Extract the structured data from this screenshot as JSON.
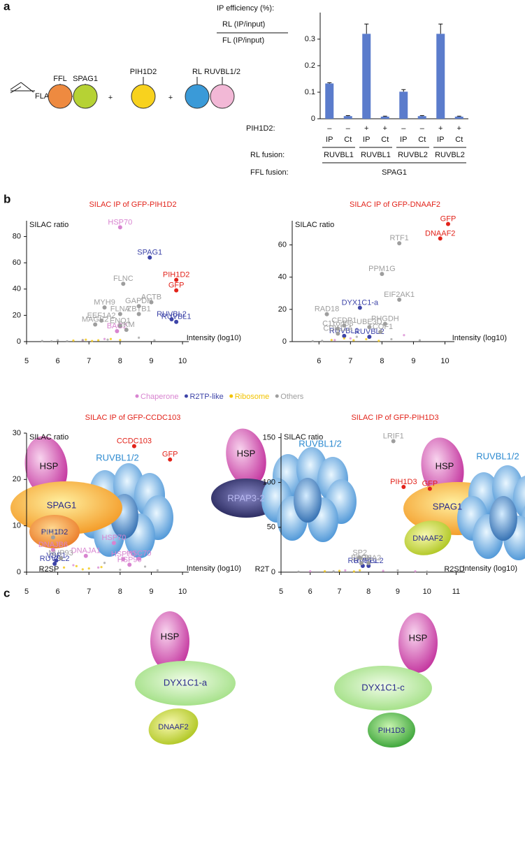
{
  "panel_labels": [
    "a",
    "b",
    "c"
  ],
  "diagram_a": {
    "flag": "FLAG",
    "labels": [
      "FFL",
      "SPAG1",
      "PIH1D2",
      "RL",
      "RUVBL1/2"
    ],
    "plus": [
      "+",
      "+"
    ]
  },
  "chart_data": [
    {
      "type": "bar",
      "y_label": [
        "IP efficiency (%):",
        "RL (IP/input)",
        "FL (IP/input)"
      ],
      "categories": [
        "IP",
        "Ct",
        "IP",
        "Ct",
        "IP",
        "Ct",
        "IP",
        "Ct"
      ],
      "values": [
        0.133,
        0.01,
        0.32,
        0.008,
        0.102,
        0.01,
        0.32,
        0.008
      ],
      "errors": [
        0.003,
        0.002,
        0.037,
        0.002,
        0.008,
        0.002,
        0.037,
        0.002
      ],
      "color": "#5b7ccc",
      "ylim": [
        0,
        0.4
      ],
      "yticks": [
        0,
        0.1,
        0.2,
        0.3
      ],
      "pih1d2_label": "PIH1D2:",
      "pih1d2": [
        "–",
        "–",
        "+",
        "+",
        "–",
        "–",
        "+",
        "+"
      ],
      "rl_label": "RL fusion:",
      "rl": [
        "RUVBL1",
        "RUVBL1",
        "RUVBL2",
        "RUVBL2"
      ],
      "ffl_label": "FFL fusion:",
      "ffl": "SPAG1"
    },
    {
      "type": "scatter",
      "title": "SILAC IP of GFP-PIH1D2",
      "y_label": "SILAC ratio",
      "x_label": "Intensity (log10)",
      "xlim": [
        5,
        10.2
      ],
      "xticks": [
        5,
        6,
        7,
        8,
        9,
        10
      ],
      "ylim": [
        0,
        92
      ],
      "yticks": [
        0,
        20,
        40,
        60,
        80
      ],
      "series": [
        {
          "name": "Chaperone",
          "color": "#d884d0",
          "x": [
            8.0,
            7.9,
            6.8,
            7.5
          ],
          "y": [
            87,
            8,
            1,
            2
          ],
          "labels": [
            "HSP70",
            "BAG2",
            null,
            null
          ]
        },
        {
          "name": "R2TP-like",
          "color": "#3d44a8",
          "x": [
            8.95,
            9.65,
            9.8
          ],
          "y": [
            64,
            17,
            15
          ],
          "labels": [
            "SPAG1",
            "RUVBL2",
            "RUVBL1"
          ]
        },
        {
          "name": "Ribosome",
          "color": "#f2c300",
          "x": [
            6.5,
            6.9,
            7.3,
            7.7,
            8.0,
            7.1
          ],
          "y": [
            0.8,
            1.5,
            1,
            2,
            1.2,
            0.5
          ],
          "labels": [
            null,
            null,
            null,
            null,
            null,
            null
          ]
        },
        {
          "name": "Others",
          "color": "#9e9e9e",
          "x": [
            8.1,
            7.5,
            8.6,
            9.0,
            8.0,
            8.6,
            7.4,
            8.0,
            7.2,
            8.2,
            5.5,
            6.0,
            6.3,
            6.8,
            7.6,
            8.6,
            9.1,
            5.8
          ],
          "y": [
            44,
            26,
            27,
            30,
            21,
            21,
            16,
            12,
            13,
            9,
            0.5,
            1,
            0.3,
            1.2,
            1.5,
            3,
            1,
            0.2
          ],
          "labels": [
            "FLNC",
            "MYH9",
            "GAPDH",
            "ACTB",
            "FLNA",
            "ZBTB1",
            "EEF1A2",
            "ENO1",
            "MAGE2",
            "PKM",
            null,
            null,
            null,
            null,
            null,
            null,
            null,
            null
          ]
        },
        {
          "color": "#e2231a",
          "x": [
            9.8,
            9.8
          ],
          "y": [
            47,
            39
          ],
          "labels": [
            "PIH1D2",
            "GFP"
          ]
        }
      ]
    },
    {
      "type": "scatter",
      "title": "SILAC IP of GFP-DNAAF2",
      "y_label": "SILAC ratio",
      "x_label": "Intensity (log10)",
      "xlim": [
        5.15,
        10.3
      ],
      "xticks": [
        6,
        7,
        8,
        9,
        10
      ],
      "ylim": [
        0,
        75
      ],
      "yticks": [
        0,
        20,
        40,
        60
      ],
      "series": [
        {
          "color": "#d884d0",
          "x": [
            7.0,
            8.7,
            6.5
          ],
          "y": [
            2,
            4,
            1
          ],
          "labels": [
            null,
            null,
            null
          ]
        },
        {
          "color": "#3d44a8",
          "x": [
            7.3,
            6.8,
            7.6
          ],
          "y": [
            21,
            3.5,
            3
          ],
          "labels": [
            "DYX1C1-a",
            "RUVBL1",
            "RUVBL2"
          ]
        },
        {
          "color": "#f2c300",
          "x": [
            6.4,
            6.8,
            7.1,
            7.5,
            7.9
          ],
          "y": [
            1,
            2,
            0.8,
            1.5,
            0.5
          ],
          "labels": [
            null,
            null,
            null,
            null,
            null
          ]
        },
        {
          "color": "#9e9e9e",
          "x": [
            8.55,
            8.0,
            8.55,
            6.25,
            6.8,
            8.1,
            7.6,
            6.6,
            7.95,
            6.6,
            6.1,
            7.2,
            8.3,
            9.2,
            5.8
          ],
          "y": [
            61,
            42,
            26,
            17,
            10,
            11,
            9,
            8,
            6,
            5,
            0.5,
            3,
            1.5,
            0.8,
            0.3
          ],
          "labels": [
            "RTF1",
            "PPM1G",
            "EIF2AK1",
            "RAD18",
            "CFDP1",
            "PHGDH",
            "UBE3D",
            "C11orf58",
            "TCOF1",
            "CDK11A",
            null,
            null,
            null,
            null,
            null
          ]
        },
        {
          "color": "#e2231a",
          "x": [
            10.1,
            9.85
          ],
          "y": [
            73,
            64
          ],
          "labels": [
            "GFP",
            "DNAAF2"
          ]
        }
      ]
    },
    {
      "type": "scatter",
      "title": "SILAC IP of GFP-CCDC103",
      "y_label": "SILAC ratio",
      "x_label": "Intensity (log10)",
      "xlim": [
        5,
        10.2
      ],
      "xticks": [
        5,
        6,
        7,
        8,
        9,
        10
      ],
      "ylim": [
        0,
        30
      ],
      "yticks": [
        0,
        10,
        20,
        30
      ],
      "series": [
        {
          "color": "#d884d0",
          "x": [
            5.85,
            6.9,
            7.8,
            8.1,
            8.6,
            8.3,
            7.3,
            6.5
          ],
          "y": [
            4.8,
            3.5,
            6.3,
            2.8,
            2.9,
            1.6,
            1,
            1.5
          ],
          "labels": [
            "DNAJB6",
            "DNAJA1",
            "HSP70",
            "HSP70",
            "HSC70",
            "HSP90",
            null,
            null
          ]
        },
        {
          "color": "#3d44a8",
          "x": [
            5.95,
            5.9
          ],
          "y": [
            2.5,
            1.8
          ],
          "labels": [
            "VBP1",
            "RUVBL2"
          ]
        },
        {
          "color": "#f2c300",
          "x": [
            6.2,
            6.6,
            7.0,
            7.4,
            6.8
          ],
          "y": [
            1,
            1.3,
            0.8,
            1.1,
            0.6
          ],
          "labels": [
            null,
            null,
            null,
            null,
            null
          ]
        },
        {
          "color": "#9e9e9e",
          "x": [
            5.85,
            6.1,
            7.5,
            8.0,
            8.8,
            9.2,
            5.5
          ],
          "y": [
            7.5,
            3,
            2,
            0.5,
            1.2,
            0.4,
            0.3
          ],
          "labels": [
            "HAX1",
            "NUP93",
            null,
            null,
            null,
            null,
            null
          ]
        },
        {
          "color": "#e2231a",
          "x": [
            8.45,
            9.6
          ],
          "y": [
            27.2,
            24.3
          ],
          "labels": [
            "CCDC103",
            "GFP"
          ]
        }
      ]
    },
    {
      "type": "scatter",
      "title": "SILAC IP of GFP-PIH1D3",
      "y_label": "SILAC ratio",
      "x_label": "Intensity (log10)",
      "xlim": [
        5,
        11.3
      ],
      "xticks": [
        5,
        6,
        7,
        8,
        9,
        10,
        11
      ],
      "ylim": [
        0,
        155
      ],
      "yticks": [
        0,
        50,
        100,
        150
      ],
      "series": [
        {
          "color": "#d884d0",
          "x": [
            6.0,
            7.2,
            8.5,
            9.6
          ],
          "y": [
            1,
            2,
            1.5,
            1
          ],
          "labels": [
            null,
            null,
            null,
            null
          ]
        },
        {
          "color": "#3d44a8",
          "x": [
            7.8,
            8.0
          ],
          "y": [
            7,
            7
          ],
          "labels": [
            "RUVBL1",
            "RUVBL2"
          ]
        },
        {
          "color": "#f2c300",
          "x": [
            6.5,
            7.0,
            7.5,
            7.7
          ],
          "y": [
            1,
            1.5,
            0.8,
            2
          ],
          "labels": [
            null,
            null,
            null,
            null
          ]
        },
        {
          "color": "#9e9e9e",
          "x": [
            8.85,
            7.7,
            7.75,
            8.0,
            5.6,
            6.8,
            9.0,
            10.0
          ],
          "y": [
            146,
            16,
            10,
            10,
            0.5,
            1,
            2,
            0.6
          ],
          "labels": [
            "LRIF1",
            "SP2",
            "BAG6",
            "KPNA2",
            null,
            null,
            null,
            null
          ]
        },
        {
          "color": "#e2231a",
          "x": [
            9.2,
            10.1
          ],
          "y": [
            95,
            93
          ],
          "labels": [
            "PIH1D3",
            "GFP"
          ]
        }
      ]
    }
  ],
  "diagram_c": {
    "complexes": [
      {
        "name": "R2SP",
        "parts": [
          "HSP",
          "SPAG1",
          "PIH1D2",
          "RUVBL1/2"
        ]
      },
      {
        "name": "R2T",
        "parts": [
          "HSP",
          "RPAP3-2",
          "RUVBL1/2"
        ]
      },
      {
        "name": "R2SD",
        "parts": [
          "HSP",
          "SPAG1",
          "DNAAF2",
          "RUVBL1/2"
        ]
      },
      {
        "parts": [
          "HSP",
          "DYX1C1-a",
          "DNAAF2"
        ]
      },
      {
        "parts": [
          "HSP",
          "DYX1C1-c",
          "PIH1D3"
        ]
      }
    ]
  }
}
